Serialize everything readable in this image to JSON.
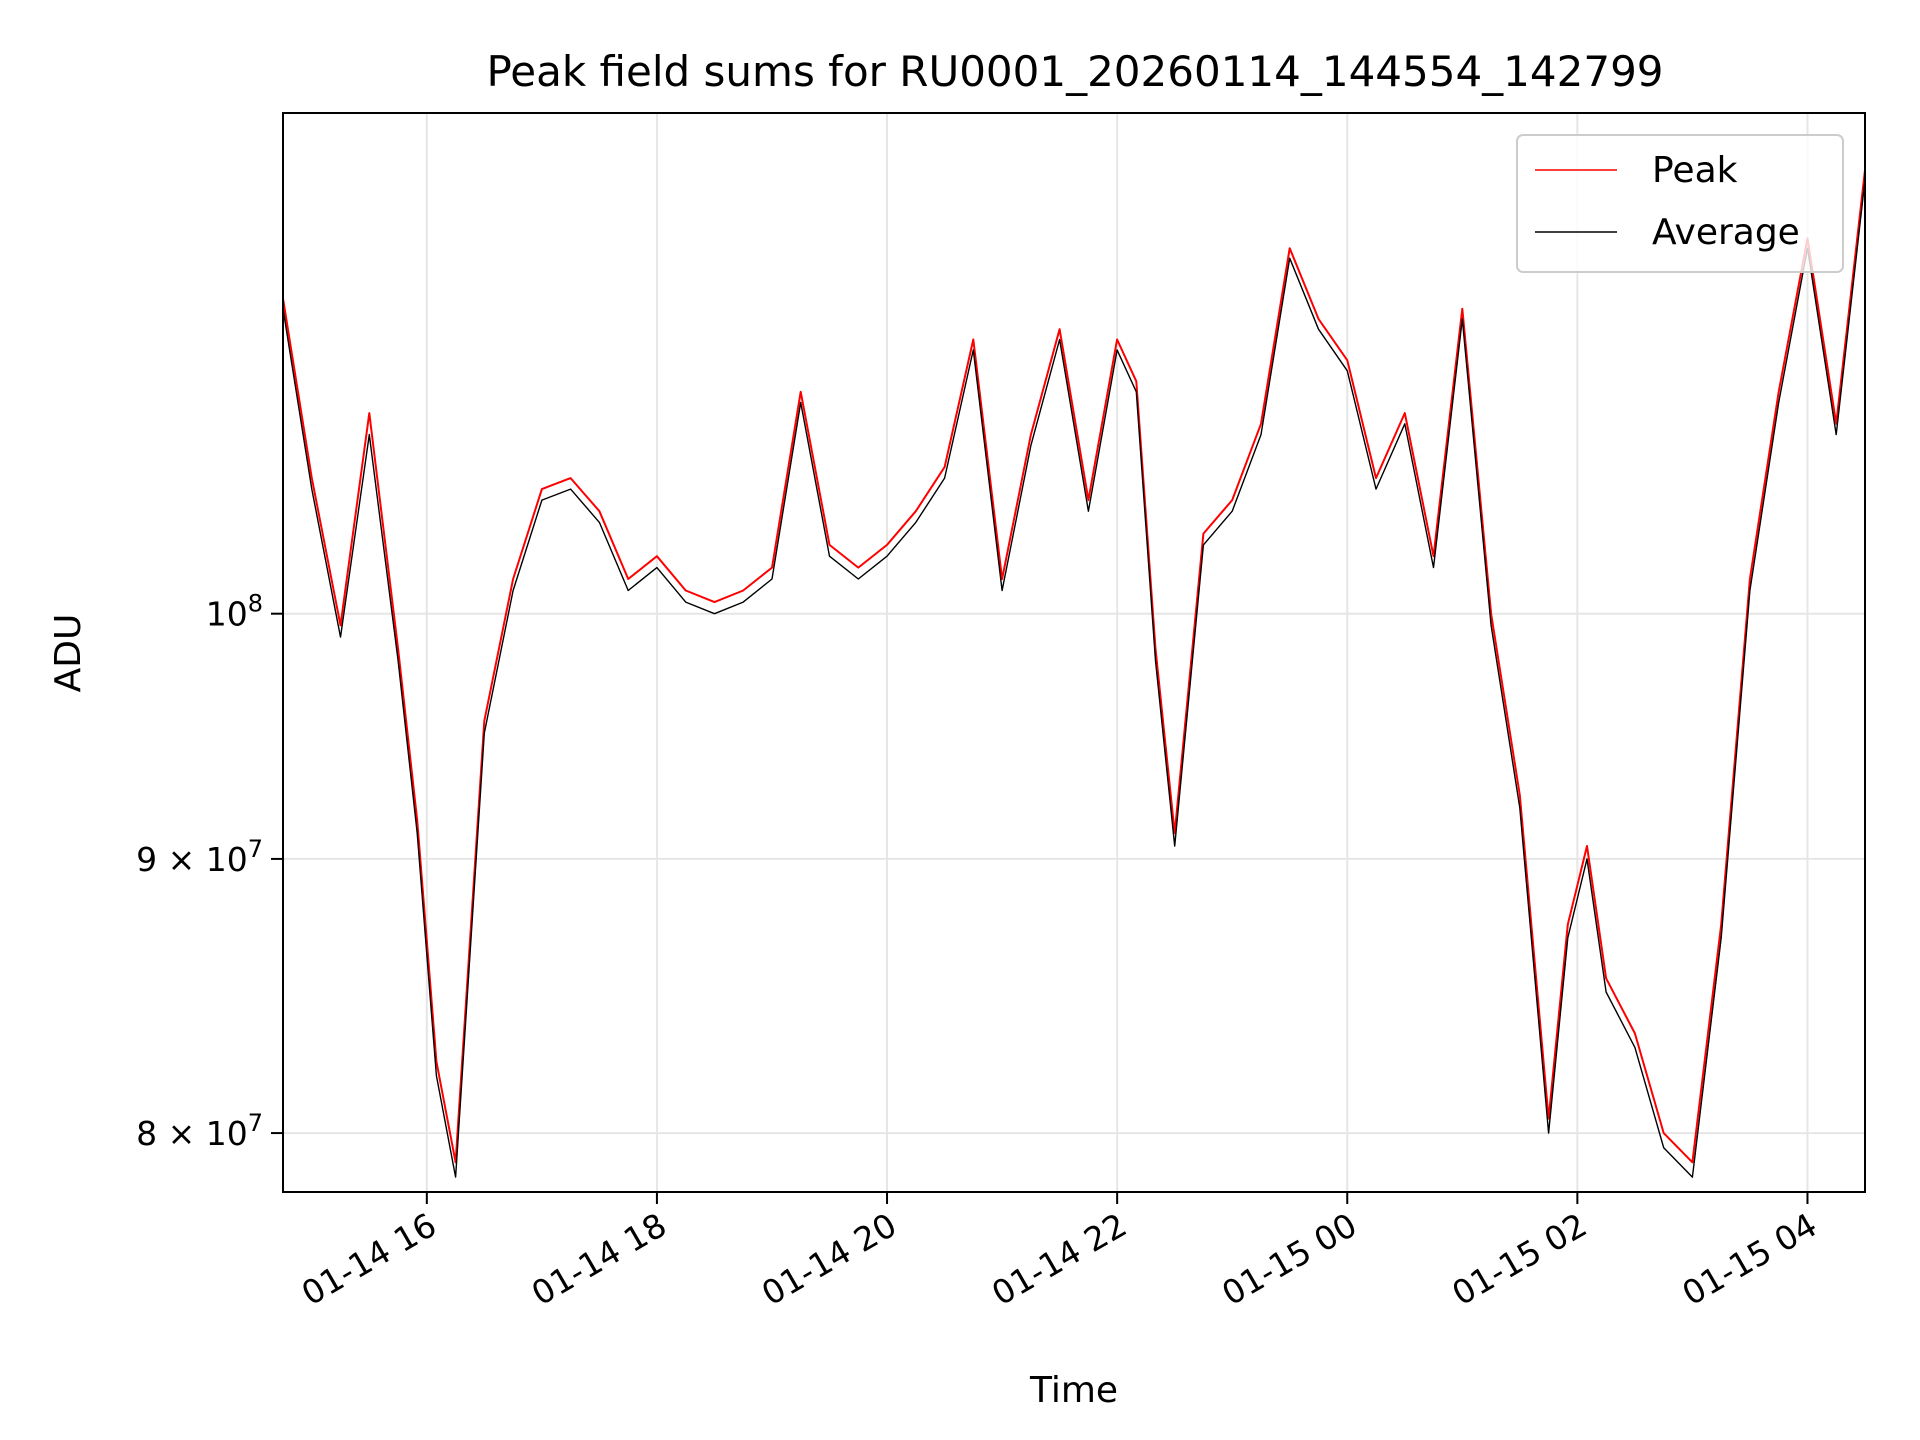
{
  "chart_data": {
    "type": "line",
    "title": "Peak field sums for RU0001_20260114_144554_142799",
    "xlabel": "Time",
    "ylabel": "ADU",
    "y_scale": "log",
    "ylim": [
      78000000,
      124000000
    ],
    "xlim": [
      "2026-01-14 14:45",
      "2026-01-15 04:30"
    ],
    "grid": true,
    "legend_position": "top-right",
    "x_tick_labels": [
      {
        "value": "2026-01-14 16:00",
        "label": "01-14 16"
      },
      {
        "value": "2026-01-14 18:00",
        "label": "01-14 18"
      },
      {
        "value": "2026-01-14 20:00",
        "label": "01-14 20"
      },
      {
        "value": "2026-01-14 22:00",
        "label": "01-14 22"
      },
      {
        "value": "2026-01-15 00:00",
        "label": "01-15 00"
      },
      {
        "value": "2026-01-15 02:00",
        "label": "01-15 02"
      },
      {
        "value": "2026-01-15 04:00",
        "label": "01-15 04"
      }
    ],
    "y_tick_labels": [
      {
        "value": 80000000,
        "mantissa": "8",
        "exponent": "7"
      },
      {
        "value": 90000000,
        "mantissa": "9",
        "exponent": "7"
      },
      {
        "value": 100000000,
        "mantissa": "",
        "exponent": "8"
      }
    ],
    "x": [
      "2026-01-14 14:45",
      "2026-01-14 15:00",
      "2026-01-14 15:15",
      "2026-01-14 15:30",
      "2026-01-14 15:45",
      "2026-01-14 15:55",
      "2026-01-14 16:05",
      "2026-01-14 16:15",
      "2026-01-14 16:30",
      "2026-01-14 16:45",
      "2026-01-14 17:00",
      "2026-01-14 17:15",
      "2026-01-14 17:30",
      "2026-01-14 17:45",
      "2026-01-14 18:00",
      "2026-01-14 18:15",
      "2026-01-14 18:30",
      "2026-01-14 18:45",
      "2026-01-14 19:00",
      "2026-01-14 19:15",
      "2026-01-14 19:30",
      "2026-01-14 19:45",
      "2026-01-14 20:00",
      "2026-01-14 20:15",
      "2026-01-14 20:30",
      "2026-01-14 20:45",
      "2026-01-14 21:00",
      "2026-01-14 21:15",
      "2026-01-14 21:30",
      "2026-01-14 21:45",
      "2026-01-14 22:00",
      "2026-01-14 22:10",
      "2026-01-14 22:20",
      "2026-01-14 22:30",
      "2026-01-14 22:45",
      "2026-01-14 23:00",
      "2026-01-14 23:15",
      "2026-01-14 23:30",
      "2026-01-14 23:45",
      "2026-01-15 00:00",
      "2026-01-15 00:15",
      "2026-01-15 00:30",
      "2026-01-15 00:45",
      "2026-01-15 01:00",
      "2026-01-15 01:15",
      "2026-01-15 01:30",
      "2026-01-15 01:45",
      "2026-01-15 01:55",
      "2026-01-15 02:05",
      "2026-01-15 02:15",
      "2026-01-15 02:30",
      "2026-01-15 02:45",
      "2026-01-15 03:00",
      "2026-01-15 03:15",
      "2026-01-15 03:30",
      "2026-01-15 03:45",
      "2026-01-15 04:00",
      "2026-01-15 04:15",
      "2026-01-15 04:30"
    ],
    "series": [
      {
        "name": "Peak",
        "color": "#ff0000",
        "values": [
          114500000,
          106000000,
          99500000,
          109000000,
          98500000,
          91500000,
          82500000,
          79000000,
          95500000,
          101500000,
          105500000,
          106000000,
          104500000,
          101500000,
          102500000,
          101000000,
          100500000,
          101000000,
          102000000,
          110000000,
          103000000,
          102000000,
          103000000,
          104500000,
          106500000,
          112500000,
          101500000,
          108000000,
          113000000,
          105000000,
          112500000,
          110500000,
          98500000,
          91000000,
          103500000,
          105000000,
          108500000,
          117000000,
          113500000,
          111500000,
          106000000,
          109000000,
          102500000,
          114000000,
          100000000,
          92500000,
          80500000,
          87500000,
          90500000,
          85500000,
          83500000,
          80000000,
          79000000,
          87500000,
          101500000,
          110000000,
          117500000,
          108500000,
          121000000
        ]
      },
      {
        "name": "Average",
        "color": "#000000",
        "values": [
          114000000,
          105500000,
          99000000,
          108000000,
          98000000,
          91000000,
          82000000,
          78500000,
          95000000,
          101000000,
          105000000,
          105500000,
          104000000,
          101000000,
          102000000,
          100500000,
          100000000,
          100500000,
          101500000,
          109500000,
          102500000,
          101500000,
          102500000,
          104000000,
          106000000,
          112000000,
          101000000,
          107500000,
          112500000,
          104500000,
          112000000,
          110000000,
          98000000,
          90500000,
          103000000,
          104500000,
          108000000,
          116500000,
          113000000,
          111000000,
          105500000,
          108500000,
          102000000,
          113500000,
          99500000,
          92000000,
          80000000,
          87000000,
          90000000,
          85000000,
          83000000,
          79500000,
          78500000,
          87000000,
          101000000,
          109500000,
          117000000,
          108000000,
          120500000
        ]
      }
    ]
  }
}
